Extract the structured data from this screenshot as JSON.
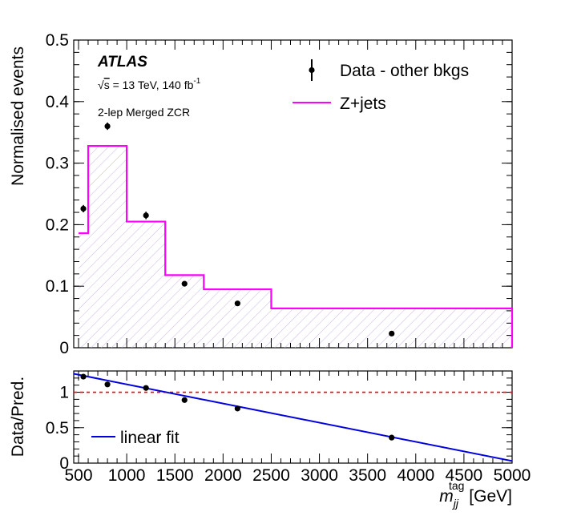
{
  "chart_data": [
    {
      "type": "histogram",
      "panel": "main",
      "ylabel": "Normalised events",
      "ylim": [
        0,
        0.5
      ],
      "yticks": [
        "0",
        "0.1",
        "0.2",
        "0.3",
        "0.4",
        "0.5"
      ],
      "experiment_label": "ATLAS",
      "energy_prefix": "s",
      "energy_text": " = 13 TeV, 140 fb",
      "energy_sup": "-1",
      "region_label": "2-lep Merged ZCR",
      "legend": {
        "data_label": "Data - other bkgs",
        "model_label": "Z+jets",
        "placement": "top-right"
      },
      "series": [
        {
          "name": "Z+jets",
          "kind": "step",
          "color": "#ff00ff",
          "bins": [
            {
              "lo": 500,
              "hi": 600,
              "value": 0.186
            },
            {
              "lo": 600,
              "hi": 1000,
              "value": 0.328
            },
            {
              "lo": 1000,
              "hi": 1400,
              "value": 0.205
            },
            {
              "lo": 1400,
              "hi": 1800,
              "value": 0.118
            },
            {
              "lo": 1800,
              "hi": 2500,
              "value": 0.095
            },
            {
              "lo": 2500,
              "hi": 5000,
              "value": 0.064
            }
          ]
        },
        {
          "name": "Data - other bkgs",
          "kind": "points",
          "color": "#000000",
          "points": [
            {
              "x": 550,
              "y": 0.226,
              "err": 0.006
            },
            {
              "x": 800,
              "y": 0.36,
              "err": 0.006
            },
            {
              "x": 1200,
              "y": 0.215,
              "err": 0.006
            },
            {
              "x": 1600,
              "y": 0.104,
              "err": 0.003
            },
            {
              "x": 2150,
              "y": 0.072,
              "err": 0.003
            },
            {
              "x": 3750,
              "y": 0.023,
              "err": 0.002
            }
          ]
        }
      ]
    },
    {
      "type": "scatter",
      "panel": "ratio",
      "ylabel": "Data/Pred.",
      "xlabel_main": "m",
      "xlabel_sub": "jj",
      "xlabel_sup": "tag",
      "xlabel_unit": " [GeV]",
      "xlim": [
        450,
        5000
      ],
      "ylim": [
        0,
        1.3
      ],
      "xticks": [
        500,
        1000,
        1500,
        2000,
        2500,
        3000,
        3500,
        4000,
        4500,
        5000
      ],
      "xtick_labels": [
        "500",
        "1000",
        "1500",
        "2000",
        "2500",
        "3000",
        "3500",
        "4000",
        "4500",
        "5000"
      ],
      "yticks": [
        "0",
        "0.5",
        "1"
      ],
      "reference_line": {
        "y": 1.0,
        "color": "#ff0000",
        "style": "dashed"
      },
      "fit": {
        "name": "linear fit",
        "color": "#0000dd",
        "x": [
          450,
          5000
        ],
        "y": [
          1.26,
          0.03
        ]
      },
      "legend_label": "linear fit",
      "points": [
        {
          "x": 550,
          "y": 1.22
        },
        {
          "x": 800,
          "y": 1.11
        },
        {
          "x": 1200,
          "y": 1.06
        },
        {
          "x": 1600,
          "y": 0.89
        },
        {
          "x": 2150,
          "y": 0.77
        },
        {
          "x": 3750,
          "y": 0.36
        }
      ]
    }
  ]
}
